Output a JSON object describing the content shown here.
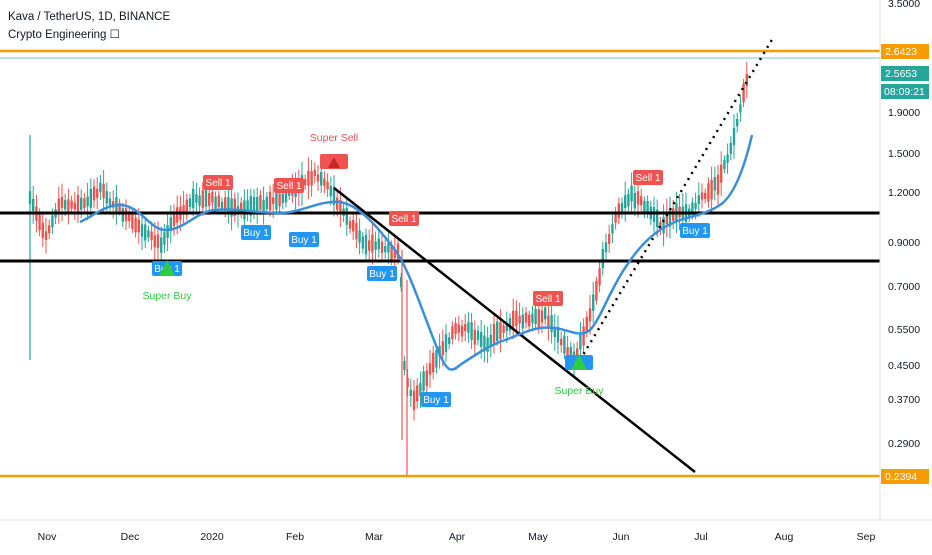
{
  "header": {
    "symbol_line": "Kava / TetherUS, 1D, BINANCE",
    "indicator_line": "Crypto Engineering ☐"
  },
  "price_scale": {
    "ticks": [
      "3.5000",
      "1.9000",
      "1.5000",
      "1.2000",
      "0.9000",
      "0.7000",
      "0.5500",
      "0.4500",
      "0.3700",
      "0.2900"
    ],
    "log_scale": true
  },
  "price_tags": {
    "high_level": "2.6423",
    "last_price": "2.5653",
    "countdown": "08:09:21",
    "low_level": "0.2394"
  },
  "time_axis": {
    "ticks": [
      "Nov",
      "Dec",
      "2020",
      "Feb",
      "Mar",
      "Apr",
      "May",
      "Jun",
      "Jul",
      "Aug",
      "Sep"
    ]
  },
  "colors": {
    "up_candle": "#26a69a",
    "down_candle": "#ef5350",
    "ma_line": "#3a8fd9",
    "level_line": "#f59d00",
    "buy_label": "#2196f3",
    "sell_label": "#ef5350",
    "super_buy_text": "#2ecc40",
    "super_sell_text": "#ef5350"
  },
  "signals": [
    {
      "label": "Sell 1",
      "kind": "sell"
    },
    {
      "label": "Sell 1",
      "kind": "sell"
    },
    {
      "label": "Super Sell",
      "kind": "super-sell"
    },
    {
      "label": "Sell 1",
      "kind": "sell"
    },
    {
      "label": "Sell 1",
      "kind": "sell"
    },
    {
      "label": "Sell 1",
      "kind": "sell"
    },
    {
      "label": "Buy 1",
      "kind": "buy"
    },
    {
      "label": "Buy 1",
      "kind": "buy"
    },
    {
      "label": "Buy 1",
      "kind": "buy"
    },
    {
      "label": "Buy 1",
      "kind": "buy"
    },
    {
      "label": "Buy 1",
      "kind": "buy"
    },
    {
      "label": "Buy 1",
      "kind": "buy"
    },
    {
      "label": "Super Buy",
      "kind": "super-buy"
    },
    {
      "label": "Super Buy",
      "kind": "super-buy"
    }
  ]
}
